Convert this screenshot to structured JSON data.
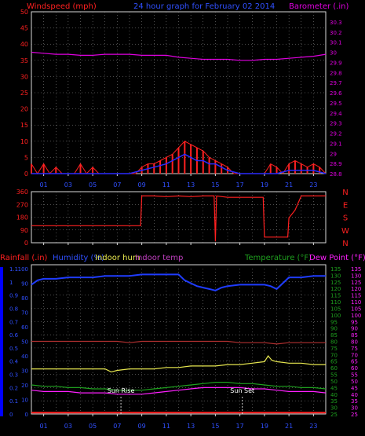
{
  "colors": {
    "background": "#000000",
    "frame": "#d8d8d8",
    "grid": "#9a9a9a",
    "windspeed": "#ff2020",
    "gust": "#ff2020",
    "avg_wind": "#2a2aff",
    "barometer": "#e000e0",
    "direction": "#ff2020",
    "rainfall": "#0000ff",
    "humidity": "#1f3cff",
    "indoor_hum": "#e8e850",
    "indoor_temp": "#b03030",
    "temperature": "#1fa01f",
    "dew_point": "#ff20ff",
    "sun_marker": "#ffffff"
  },
  "header": {
    "windspeed_label": "Windspeed (mph)",
    "title": "24 hour graph for  February 02 2014",
    "barometer_label": "Barometer (.in)"
  },
  "chart_data": [
    {
      "type": "line",
      "panel": "wind_and_barometer",
      "title": "24 hour graph for  February 02 2014",
      "ylabel_left": "Windspeed (mph)",
      "ylabel_right": "Barometer (.in)",
      "ylim_left": [
        0,
        50
      ],
      "ylim_right": [
        28.8,
        30.4
      ],
      "yticks_left": [
        "0",
        "5",
        "10",
        "15",
        "20",
        "25",
        "30",
        "35",
        "40",
        "45",
        "50"
      ],
      "yticks_right": [
        "28.8",
        "28.9",
        "29",
        "29.1",
        "29.2",
        "29.3",
        "29.4",
        "29.5",
        "29.6",
        "29.7",
        "29.8",
        "29.9",
        "30",
        "30.1",
        "30.2",
        "30.3"
      ],
      "xticks": [
        "01",
        "03",
        "05",
        "07",
        "09",
        "11",
        "13",
        "15",
        "17",
        "19",
        "21",
        "23"
      ],
      "xlim": [
        0,
        24
      ],
      "grid": true,
      "series": [
        {
          "name": "Barometer",
          "axis": "right",
          "x": [
            0,
            1,
            2,
            3,
            4,
            5,
            6,
            7,
            8,
            9,
            10,
            11,
            12,
            13,
            14,
            15,
            16,
            17,
            18,
            19,
            20,
            21,
            22,
            23,
            24
          ],
          "y": [
            30.0,
            29.99,
            29.98,
            29.98,
            29.97,
            29.97,
            29.98,
            29.98,
            29.98,
            29.97,
            29.97,
            29.97,
            29.95,
            29.94,
            29.93,
            29.93,
            29.93,
            29.92,
            29.92,
            29.93,
            29.93,
            29.94,
            29.95,
            29.96,
            29.98
          ]
        },
        {
          "name": "Wind Gust",
          "axis": "left",
          "x": [
            0,
            0.5,
            1,
            1.5,
            2,
            2.5,
            3,
            3.5,
            4,
            4.5,
            5,
            5.5,
            6,
            6.5,
            7,
            7.5,
            8,
            8.5,
            9,
            9.5,
            10,
            10.5,
            11,
            11.5,
            12,
            12.5,
            13,
            13.5,
            14,
            14.5,
            15,
            15.5,
            16,
            16.5,
            17,
            17.5,
            18,
            18.5,
            19,
            19.5,
            20,
            20.5,
            21,
            21.5,
            22,
            22.5,
            23,
            23.5,
            24
          ],
          "y": [
            3,
            0,
            3,
            0,
            2,
            0,
            0,
            0,
            3,
            0,
            2,
            0,
            0,
            0,
            0,
            0,
            0,
            0,
            2,
            3,
            3,
            4,
            5,
            6,
            8,
            10,
            9,
            8,
            7,
            5,
            4,
            3,
            2,
            0,
            0,
            0,
            0,
            0,
            0,
            3,
            2,
            0,
            3,
            4,
            3,
            2,
            3,
            2,
            0
          ]
        },
        {
          "name": "Wind Average",
          "axis": "left",
          "x": [
            0,
            1,
            2,
            3,
            4,
            5,
            6,
            7,
            8,
            8.5,
            9,
            9.5,
            10,
            10.5,
            11,
            11.5,
            12,
            12.5,
            13,
            13.5,
            14,
            14.5,
            15,
            15.5,
            16,
            17,
            18,
            19,
            20,
            21,
            22,
            23,
            24
          ],
          "y": [
            0,
            0,
            0,
            0,
            0,
            0,
            0,
            0,
            0,
            0.5,
            1,
            1.5,
            2,
            2.5,
            3,
            4,
            5,
            6,
            5,
            4,
            4,
            3,
            3,
            2,
            1,
            0,
            0,
            0,
            0,
            1,
            1,
            1,
            0
          ]
        }
      ]
    },
    {
      "type": "line",
      "panel": "wind_direction",
      "ylim": [
        0,
        360
      ],
      "yticks": [
        "0",
        "90",
        "180",
        "270",
        "360"
      ],
      "direction_labels": [
        "N",
        "W",
        "S",
        "E",
        "N"
      ],
      "xlim": [
        0,
        24
      ],
      "grid": true,
      "series": [
        {
          "name": "Wind Direction",
          "x": [
            0,
            1,
            2,
            3,
            4,
            5,
            6,
            7,
            8,
            8.9,
            9,
            9.5,
            10,
            11,
            12,
            13,
            14,
            14.9,
            15,
            15.1,
            16,
            17,
            18,
            18.9,
            19,
            20,
            20.5,
            20.9,
            21,
            21.5,
            22,
            23,
            24
          ],
          "y": [
            120,
            120,
            120,
            120,
            120,
            120,
            120,
            120,
            120,
            120,
            330,
            330,
            330,
            325,
            330,
            325,
            330,
            330,
            10,
            330,
            320,
            320,
            320,
            320,
            40,
            40,
            40,
            40,
            175,
            230,
            330,
            330,
            330
          ]
        }
      ]
    },
    {
      "type": "line",
      "panel": "temperature_humidity_rain",
      "legend": {
        "rainfall": "Rainfall (.in)",
        "humidity": "Humidity (%)",
        "indoor_hum": "Indoor hum",
        "indoor_temp": "Indoor temp",
        "temperature": "Temperature (°F)",
        "dew_point": "Dew Point (°F)"
      },
      "ylim_rain": [
        0,
        1.1
      ],
      "yticks_rain": [
        "0",
        "0.1",
        "0.2",
        "0.3",
        "0.4",
        "0.5",
        "0.6",
        "0.7",
        "0.8",
        "0.9",
        "1",
        "1.1"
      ],
      "ylim_humidity": [
        0,
        100
      ],
      "yticks_humidity": [
        "0",
        "10",
        "20",
        "30",
        "40",
        "50",
        "60",
        "70",
        "80",
        "90",
        "100"
      ],
      "ylim_temp": [
        25,
        135
      ],
      "yticks_temp": [
        "25",
        "30",
        "35",
        "40",
        "45",
        "50",
        "55",
        "60",
        "65",
        "70",
        "75",
        "80",
        "85",
        "90",
        "95",
        "100",
        "105",
        "110",
        "115",
        "120",
        "125",
        "130",
        "135"
      ],
      "xlim": [
        0,
        24
      ],
      "xticks": [
        "01",
        "03",
        "05",
        "07",
        "09",
        "11",
        "13",
        "15",
        "17",
        "19",
        "21",
        "23"
      ],
      "annotations": [
        {
          "text": "Sun Rise",
          "x": 7.3
        },
        {
          "text": "Sun Set",
          "x": 17.2
        }
      ],
      "series": [
        {
          "name": "Humidity (%)",
          "axis": "humidity",
          "x": [
            0,
            0.5,
            1,
            2,
            3,
            4,
            5,
            6,
            7,
            8,
            9,
            10,
            11,
            12,
            12.5,
            13,
            13.5,
            14,
            14.5,
            15,
            15.5,
            16,
            17,
            18,
            19,
            19.5,
            20,
            20.5,
            21,
            22,
            23,
            24
          ],
          "y": [
            89,
            92,
            93,
            93,
            94,
            94,
            94,
            95,
            95,
            95,
            96,
            96,
            96,
            96,
            92,
            90,
            88,
            87,
            86,
            85,
            87,
            88,
            89,
            89,
            89,
            88,
            86,
            90,
            94,
            94,
            95,
            95
          ]
        },
        {
          "name": "Indoor hum",
          "axis": "humidity",
          "x": [
            0,
            1,
            2,
            3,
            4,
            5,
            6,
            6.5,
            7,
            8,
            9,
            10,
            11,
            12,
            13,
            14,
            15,
            16,
            17,
            18,
            19,
            19.3,
            19.6,
            20,
            21,
            22,
            23,
            24
          ],
          "y": [
            31,
            31,
            31,
            31,
            31,
            31,
            31,
            29,
            30,
            31,
            31,
            31,
            32,
            32,
            33,
            33,
            33,
            34,
            34,
            35,
            36,
            40,
            37,
            36,
            35,
            35,
            34,
            34
          ]
        },
        {
          "name": "Indoor temp",
          "axis": "temp",
          "x": [
            0,
            1,
            2,
            3,
            4,
            5,
            6,
            7,
            8,
            9,
            10,
            11,
            12,
            13,
            14,
            15,
            16,
            17,
            18,
            19,
            20,
            21,
            22,
            23,
            24
          ],
          "y": [
            80,
            80,
            80,
            80,
            80,
            80,
            80,
            80,
            79,
            80,
            80,
            80,
            80,
            80,
            80,
            80,
            80,
            79,
            79,
            79,
            78,
            79,
            79,
            79,
            79
          ]
        },
        {
          "name": "Temperature (°F)",
          "axis": "temp",
          "x": [
            0,
            1,
            2,
            3,
            4,
            5,
            6,
            7,
            8,
            9,
            10,
            11,
            12,
            13,
            14,
            15,
            16,
            17,
            18,
            19,
            20,
            21,
            22,
            23,
            24
          ],
          "y": [
            47,
            46,
            46,
            45,
            45,
            44,
            44,
            43,
            43,
            43,
            44,
            45,
            46,
            47,
            48,
            49,
            49,
            48,
            48,
            47,
            46,
            46,
            45,
            45,
            44
          ]
        },
        {
          "name": "Dew Point (°F)",
          "axis": "temp",
          "x": [
            0,
            1,
            2,
            3,
            4,
            5,
            6,
            7,
            8,
            9,
            10,
            11,
            12,
            13,
            14,
            15,
            16,
            17,
            18,
            19,
            20,
            21,
            22,
            23,
            24
          ],
          "y": [
            43,
            42,
            42,
            42,
            41,
            41,
            41,
            40,
            40,
            40,
            41,
            42,
            43,
            44,
            45,
            45,
            45,
            45,
            44,
            44,
            43,
            42,
            42,
            42,
            41
          ]
        },
        {
          "name": "Rainfall (.in)",
          "axis": "rain",
          "x": [
            0,
            1,
            2,
            3,
            4,
            5,
            6,
            7,
            8,
            9,
            10,
            11,
            12,
            13,
            14,
            15,
            16,
            17,
            18,
            19,
            20,
            21,
            22,
            23,
            24
          ],
          "y": [
            0.01,
            0.01,
            0.01,
            0.01,
            0.01,
            0.01,
            0.01,
            0.01,
            0.01,
            0.01,
            0.01,
            0.01,
            0.01,
            0.01,
            0.01,
            0.01,
            0.01,
            0.01,
            0.01,
            0.01,
            0.01,
            0.01,
            0.01,
            0.01,
            0.01
          ]
        }
      ]
    }
  ]
}
